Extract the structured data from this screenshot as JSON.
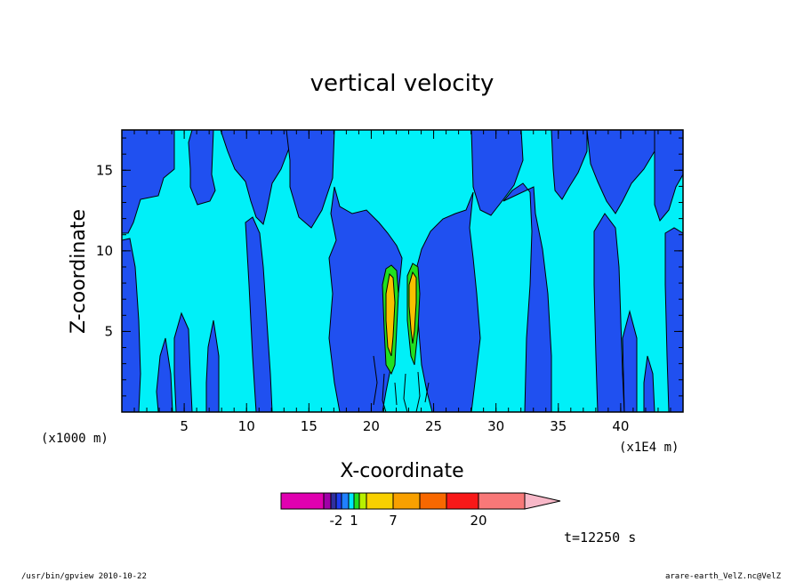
{
  "chart_data": {
    "type": "heatmap",
    "title": "vertical velocity",
    "xlabel": "X-coordinate",
    "ylabel": "Z-coordinate",
    "x_unit_label": "(x1000 m)",
    "x_scale_label": "(x1E4 m)",
    "x_ticks": [
      "5",
      "10",
      "15",
      "20",
      "25",
      "30",
      "35",
      "40"
    ],
    "y_ticks": [
      "5",
      "10",
      "15"
    ],
    "xlim": [
      0,
      45
    ],
    "ylim": [
      0,
      17.5
    ],
    "colorbar": {
      "levels": [
        -20,
        -10,
        -5,
        -2,
        -1,
        0,
        1,
        2,
        4,
        7,
        10,
        15,
        20,
        30
      ],
      "labels": [
        "-2",
        "1",
        "7",
        "20"
      ],
      "colors": [
        "#e000b0",
        "#a000a8",
        "#3030a0",
        "#1e3cf0",
        "#2080ff",
        "#00e8f8",
        "#20e020",
        "#b8f000",
        "#f8d000",
        "#f8a000",
        "#f86800",
        "#f81818",
        "#f87878",
        "#f8b8c8"
      ]
    },
    "time_label": "t=12250 s",
    "colors": {
      "updraft_weak": "#00f0f8",
      "downdraft_weak": "#2050f0",
      "core": "#f8c000"
    }
  },
  "footer": {
    "left": "/usr/bin/gpview   2010-10-22",
    "right": "arare-earth_VelZ.nc@VelZ"
  }
}
